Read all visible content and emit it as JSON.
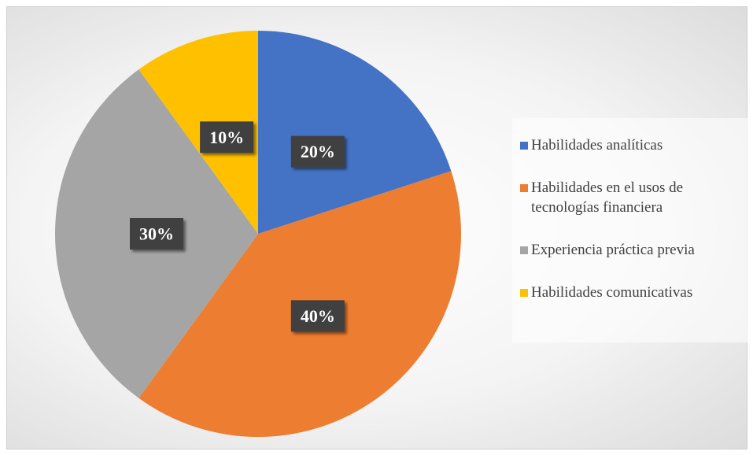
{
  "chart_data": {
    "type": "pie",
    "categories": [
      "Habilidades analíticas",
      "Habilidades en el usos de tecnologías financiera",
      "Experiencia práctica previa",
      "Habilidades comunicativas"
    ],
    "values": [
      20,
      40,
      30,
      10
    ],
    "value_labels": [
      "20%",
      "40%",
      "30%",
      "10%"
    ],
    "colors": [
      "#4472c4",
      "#ed7d31",
      "#a5a5a5",
      "#ffc000"
    ],
    "legend": "right"
  }
}
